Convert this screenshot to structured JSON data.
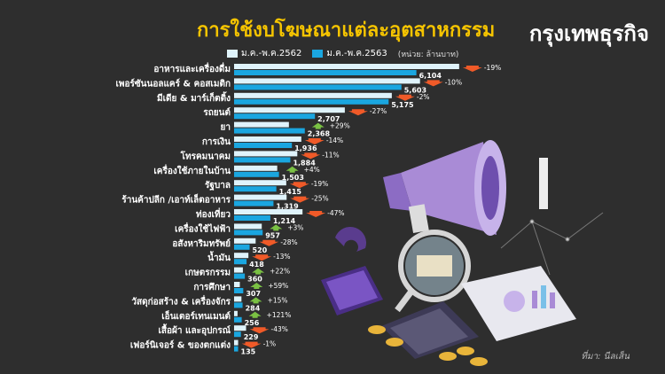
{
  "header": {
    "title": "การใช้งบโฆษณาแต่ละอุตสาหกรรม",
    "brand": "กรุงเทพธุรกิจ"
  },
  "legend": {
    "series_2562": "ม.ค.-พ.ค.2562",
    "series_2563": "ม.ค.-พ.ค.2563",
    "unit": "(หน่วย: ล้านบาท)"
  },
  "colors": {
    "bar_2562": "#dff3fb",
    "bar_2563": "#1aa6e0",
    "down": "#f05a28",
    "up": "#7ac143"
  },
  "source": "ที่มา: นีลเส็น",
  "chart_data": {
    "type": "bar",
    "orientation": "horizontal",
    "categories": [
      "อาหารและเครื่องดื่ม",
      "เพอร์ซันนอลแคร์ & คอสเมติก",
      "มีเดีย & มาร์เก็ตติ้ง",
      "รถยนต์",
      "ยา",
      "การเงิน",
      "โทรคมนาคม",
      "เครื่องใช้ภายในบ้าน",
      "รัฐบาล",
      "ร้านค้าปลีก /เอาท์เล็ตอาหาร",
      "ท่องเที่ยว",
      "เครื่องใช้ไฟฟ้า",
      "อสังหาริมทรัพย์",
      "น้ำมัน",
      "เกษตรกรรม",
      "การศึกษา",
      "วัสดุก่อสร้าง & เครื่องจักร",
      "เอ็นเตอร์เทนเมนต์",
      "เสื้อผ้า และอุปกรณ์",
      "เฟอร์นิเจอร์ & ของตกแต่ง"
    ],
    "series": [
      {
        "name": "ม.ค.-พ.ค.2562",
        "values": [
          7536,
          6226,
          5281,
          3708,
          1836,
          2251,
          2117,
          1445,
          1747,
          1759,
          2291,
          927,
          722,
          480,
          295,
          193,
          247,
          116,
          402,
          136
        ]
      },
      {
        "name": "ม.ค.-พ.ค.2563",
        "values": [
          6104,
          5603,
          5175,
          2707,
          2368,
          1936,
          1884,
          1503,
          1415,
          1319,
          1214,
          957,
          520,
          418,
          360,
          307,
          284,
          256,
          229,
          135
        ]
      }
    ],
    "value_labels": [
      "6,104",
      "5,603",
      "5,175",
      "2,707",
      "2,368",
      "1,936",
      "1,884",
      "1,503",
      "1,415",
      "1,319",
      "1,214",
      "957",
      "520",
      "418",
      "360",
      "307",
      "284",
      "256",
      "229",
      "135"
    ],
    "changes": [
      "-19%",
      "-10%",
      "-2%",
      "-27%",
      "+29%",
      "-14%",
      "-11%",
      "+4%",
      "-19%",
      "-25%",
      "-47%",
      "+3%",
      "-28%",
      "-13%",
      "+22%",
      "+59%",
      "+15%",
      "+121%",
      "-43%",
      "-1%"
    ],
    "xlim": [
      0,
      7600
    ],
    "legend_position": "top"
  }
}
